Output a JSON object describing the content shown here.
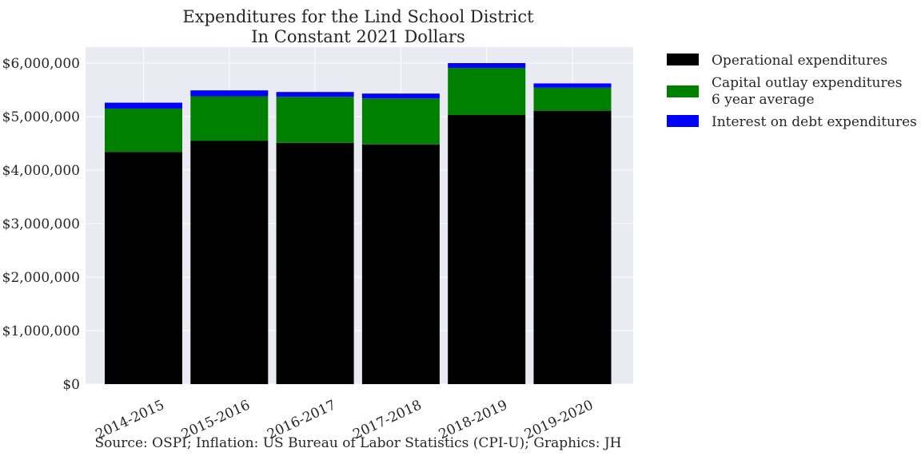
{
  "chart_data": {
    "type": "bar",
    "stacked": true,
    "title_line1": "Expenditures for the Lind School District",
    "title_line2": "In Constant 2021 Dollars",
    "xlabel": "",
    "ylabel": "",
    "ylim": [
      0,
      6000000
    ],
    "yticks": [
      0,
      1000000,
      2000000,
      3000000,
      4000000,
      5000000,
      6000000
    ],
    "ytick_labels": [
      "$0",
      "$1,000,000",
      "$2,000,000",
      "$3,000,000",
      "$4,000,000",
      "$5,000,000",
      "$6,000,000"
    ],
    "categories": [
      "2014-2015",
      "2015-2016",
      "2016-2017",
      "2017-2018",
      "2018-2019",
      "2019-2020"
    ],
    "series": [
      {
        "name": "Operational expenditures",
        "name_line1": "Operational expenditures",
        "name_line2": "",
        "color": "#000000",
        "values": [
          4340000,
          4550000,
          4510000,
          4480000,
          5030000,
          5110000
        ]
      },
      {
        "name": "Capital outlay expenditures 6 year average",
        "name_line1": "Capital outlay expenditures",
        "name_line2": "6 year average",
        "color": "#008000",
        "values": [
          810000,
          830000,
          860000,
          860000,
          880000,
          430000
        ]
      },
      {
        "name": "Interest on debt expenditures",
        "name_line1": "Interest on debt expenditures",
        "name_line2": "",
        "color": "#0000ff",
        "values": [
          110000,
          110000,
          90000,
          90000,
          90000,
          80000
        ]
      }
    ],
    "legend_position": "outside-right",
    "grid": true,
    "background": "#eaeaf2",
    "grid_color": "#ffffff",
    "source": "Source: OSPI; Inflation: US Bureau of Labor Statistics (CPI-U); Graphics: JH"
  }
}
